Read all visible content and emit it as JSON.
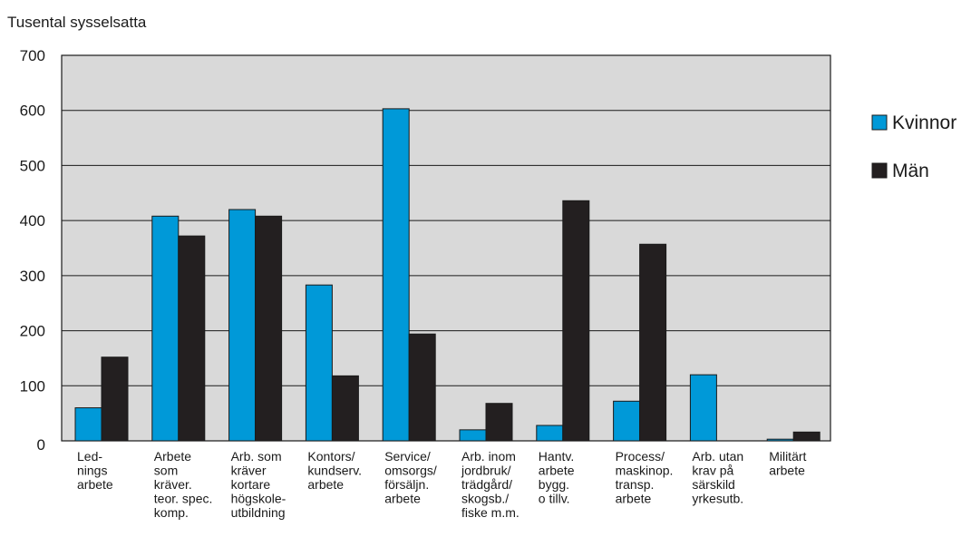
{
  "chart_data": {
    "type": "bar",
    "ylabel": "Tusental sysselsatta",
    "ylim": [
      0,
      700
    ],
    "yticks": [
      0,
      100,
      200,
      300,
      400,
      500,
      600,
      700
    ],
    "grid": true,
    "legend_position": "right",
    "categories": [
      [
        "Led-",
        "nings",
        "arbete"
      ],
      [
        "Arbete",
        "som",
        "kräver.",
        "teor. spec.",
        "komp."
      ],
      [
        "Arb. som",
        "kräver",
        "kortare",
        "högskole-",
        "utbildning"
      ],
      [
        "Kontors/",
        "kundserv.",
        "arbete"
      ],
      [
        "Service/",
        "omsorgs/",
        "försäljn.",
        "arbete"
      ],
      [
        "Arb. inom",
        "jordbruk/",
        "trädgård/",
        "skogsb./",
        "fiske m.m."
      ],
      [
        "Hantv.",
        "arbete",
        "bygg.",
        "o tillv."
      ],
      [
        "Process/",
        "maskinop.",
        "transp.",
        "arbete"
      ],
      [
        "Arb. utan",
        "krav på",
        "särskild",
        "yrkesutb."
      ],
      [
        "Militärt",
        "arbete"
      ]
    ],
    "series": [
      {
        "name": "Kvinnor",
        "color": "#0099d8",
        "values": [
          60,
          408,
          420,
          283,
          603,
          20,
          28,
          72,
          120,
          3
        ]
      },
      {
        "name": "Män",
        "color": "#231f20",
        "values": [
          152,
          372,
          408,
          118,
          194,
          68,
          436,
          357,
          0,
          16
        ]
      }
    ],
    "plot_background": "#d9d9d9"
  }
}
